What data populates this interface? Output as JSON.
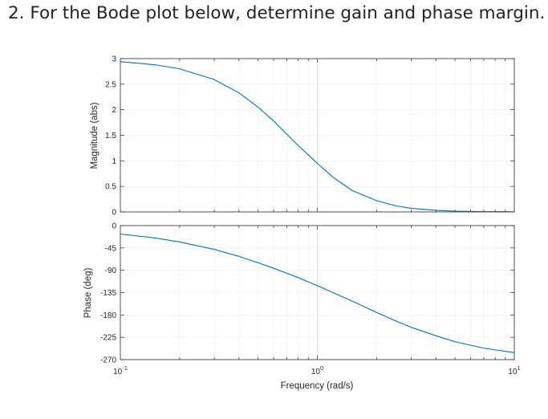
{
  "question": "2.  For the Bode plot below, determine gain and phase margin.",
  "colors": {
    "series": "#0072bd",
    "axes": "#262626",
    "grid": "#d9d9d9"
  },
  "chart_data": [
    {
      "type": "line",
      "xscale": "log",
      "xlim": [
        0.1,
        10
      ],
      "ylim": [
        0,
        3
      ],
      "yticks": [
        0,
        0.5,
        1,
        1.5,
        2,
        2.5,
        3
      ],
      "ytick_labels": [
        "0",
        "0.5",
        "1",
        "1.5",
        "2",
        "2.5",
        "3"
      ],
      "ylabel": "Magnitude (abs)",
      "grid": true,
      "x": [
        0.1,
        0.15,
        0.2,
        0.3,
        0.4,
        0.5,
        0.6,
        0.7,
        0.8,
        1.0,
        1.2,
        1.5,
        2.0,
        2.5,
        3.0,
        4.0,
        5.0,
        7.0,
        10.0
      ],
      "y": [
        2.94,
        2.88,
        2.8,
        2.59,
        2.33,
        2.05,
        1.78,
        1.52,
        1.3,
        0.95,
        0.68,
        0.42,
        0.22,
        0.12,
        0.07,
        0.03,
        0.015,
        0.006,
        0.002
      ]
    },
    {
      "type": "line",
      "xscale": "log",
      "xlim": [
        0.1,
        10
      ],
      "ylim": [
        -270,
        0
      ],
      "yticks": [
        -270,
        -225,
        -180,
        -135,
        -90,
        -45,
        0
      ],
      "ytick_labels": [
        "-270",
        "-225",
        "-180",
        "-135",
        "-90",
        "-45",
        "0"
      ],
      "xtick_bases": [
        "10",
        "10",
        "10"
      ],
      "xtick_exponents": [
        "-1",
        "0",
        "1"
      ],
      "xlabel": "Frequency  (rad/s)",
      "ylabel": "Phase (deg)",
      "grid": true,
      "x": [
        0.1,
        0.15,
        0.2,
        0.3,
        0.4,
        0.5,
        0.6,
        0.7,
        0.8,
        1.0,
        1.2,
        1.5,
        2.0,
        2.5,
        3.0,
        4.0,
        5.0,
        7.0,
        10.0
      ],
      "y": [
        -17,
        -25,
        -33,
        -48,
        -62,
        -75,
        -86,
        -96,
        -105,
        -121,
        -135,
        -152,
        -175,
        -192,
        -205,
        -222,
        -234,
        -247,
        -256
      ]
    }
  ]
}
